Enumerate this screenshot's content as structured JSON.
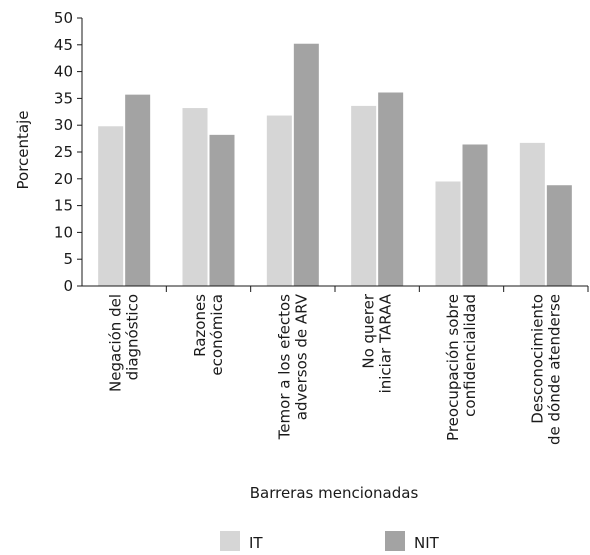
{
  "chart_data": {
    "type": "bar",
    "categories": [
      [
        "Negación del",
        "diagnóstico"
      ],
      [
        "Razones",
        "económica"
      ],
      [
        "Temor a los efectos",
        "adversos de ARV"
      ],
      [
        "No querer",
        "iniciar TARAA"
      ],
      [
        "Preocupación sobre",
        "confidencialidad"
      ],
      [
        "Desconocimiento",
        "de dónde atenderse"
      ]
    ],
    "series": [
      {
        "name": "IT",
        "color": "#d6d6d6",
        "values": [
          29.8,
          33.2,
          31.8,
          33.6,
          19.5,
          26.7
        ]
      },
      {
        "name": "NIT",
        "color": "#a3a3a3",
        "values": [
          35.7,
          28.2,
          45.2,
          36.1,
          26.4,
          18.8
        ]
      }
    ],
    "xlabel": "Barreras mencionadas",
    "ylabel": "Porcentaje",
    "ylim": [
      0,
      50
    ],
    "yticks": [
      0,
      5,
      10,
      15,
      20,
      25,
      30,
      35,
      40,
      45,
      50
    ],
    "grid": false,
    "legend": "bottom"
  }
}
